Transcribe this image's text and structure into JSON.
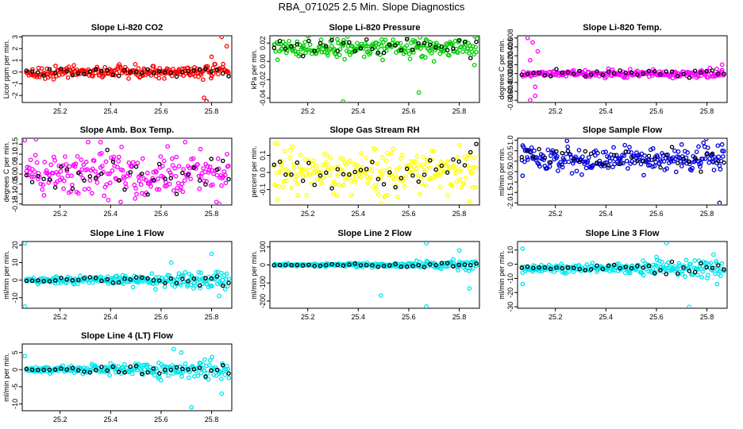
{
  "page": {
    "title": "RBA_071025  2.5 Min. Slope Diagnostics"
  },
  "chart_data": [
    {
      "type": "scatter",
      "title": "Slope Li-820 CO2",
      "ylabel": "Licor ppm per min.",
      "xlim": [
        25.05,
        25.88
      ],
      "ylim": [
        -2.6,
        3.1
      ],
      "xticks": [
        25.2,
        25.4,
        25.6,
        25.8
      ],
      "yticks": [
        -2,
        -1,
        0,
        1,
        2,
        3
      ],
      "ytick_labels": [
        "-2",
        "-1",
        "0",
        "1",
        "2",
        "3"
      ],
      "grid": false,
      "main_color": "#ff0000",
      "baseline": 0,
      "spread": 0.25,
      "outliers": [
        [
          25.84,
          3.0
        ],
        [
          25.77,
          -2.2
        ],
        [
          25.86,
          2.2
        ],
        [
          25.78,
          -2.5
        ],
        [
          25.8,
          1.3
        ]
      ],
      "series": [
        {
          "name": "",
          "color": "#ff0000"
        },
        {
          "name": "",
          "color": "#000000"
        }
      ]
    },
    {
      "type": "scatter",
      "title": "Slope Li-820 Pressure",
      "ylabel": "kPa per min.",
      "xlim": [
        25.05,
        25.88
      ],
      "ylim": [
        -0.045,
        0.028
      ],
      "xticks": [
        25.2,
        25.4,
        25.6,
        25.8
      ],
      "yticks": [
        -0.04,
        -0.02,
        0.0,
        0.02
      ],
      "ytick_labels": [
        "-0.04",
        "-0.02",
        "0.00",
        "0.02"
      ],
      "grid": false,
      "main_color": "#00cc00",
      "baseline": 0.015,
      "spread": 0.005,
      "outliers": [
        [
          25.34,
          -0.044
        ],
        [
          25.64,
          -0.034
        ],
        [
          25.87,
          0.025
        ],
        [
          25.86,
          -0.004
        ],
        [
          25.7,
          0.0
        ]
      ],
      "series": [
        {
          "name": "",
          "color": "#00cc00"
        },
        {
          "name": "",
          "color": "#000000"
        }
      ]
    },
    {
      "type": "scatter",
      "title": "Slope Li-820 Temp.",
      "ylabel": "degrees C per min.",
      "xlim": [
        25.05,
        25.88
      ],
      "ylim": [
        -0.0065,
        0.0085
      ],
      "xticks": [
        25.2,
        25.4,
        25.6,
        25.8
      ],
      "yticks": [
        -0.006,
        -0.004,
        -0.002,
        0.0,
        0.002,
        0.004,
        0.006,
        0.008
      ],
      "ytick_labels": [
        "-0.006",
        "-0.004",
        "-0.002",
        "0.000",
        "0.002",
        "0.004",
        "0.006",
        "0.008"
      ],
      "grid": false,
      "main_color": "#ff00ff",
      "baseline": 0.0,
      "spread": 0.0004,
      "outliers": [
        [
          25.09,
          0.008
        ],
        [
          25.1,
          -0.006
        ],
        [
          25.11,
          0.007
        ],
        [
          25.12,
          -0.005
        ],
        [
          25.13,
          0.005
        ],
        [
          25.1,
          0.003
        ],
        [
          25.12,
          -0.003
        ],
        [
          25.86,
          0.002
        ]
      ],
      "series": [
        {
          "name": "",
          "color": "#ff00ff"
        },
        {
          "name": "",
          "color": "#000000"
        }
      ]
    },
    {
      "type": "scatter",
      "title": "Slope Amb. Box Temp.",
      "ylabel": "degrees C per min.",
      "xlim": [
        25.05,
        25.88
      ],
      "ylim": [
        -0.155,
        0.18
      ],
      "xticks": [
        25.2,
        25.4,
        25.6,
        25.8
      ],
      "yticks": [
        -0.15,
        -0.1,
        -0.05,
        0.0,
        0.05,
        0.1,
        0.15
      ],
      "ytick_labels": [
        "-0.15",
        "-0.10",
        "-0.05",
        "0.00",
        "0.05",
        "0.10",
        "0.15"
      ],
      "grid": false,
      "main_color": "#ff00ff",
      "baseline": 0.0,
      "spread": 0.06,
      "outliers": [
        [
          25.36,
          0.16
        ],
        [
          25.44,
          -0.14
        ],
        [
          25.83,
          -0.15
        ],
        [
          25.06,
          0.17
        ]
      ],
      "series": [
        {
          "name": "",
          "color": "#ff00ff"
        },
        {
          "name": "",
          "color": "#000000"
        }
      ]
    },
    {
      "type": "scatter",
      "title": "Slope Gas Stream RH",
      "ylabel": "percent per min.",
      "xlim": [
        25.05,
        25.88
      ],
      "ylim": [
        -0.19,
        0.2
      ],
      "xticks": [
        25.2,
        25.4,
        25.6,
        25.8
      ],
      "yticks": [
        -0.1,
        0.0,
        0.1
      ],
      "ytick_labels": [
        "-0.1",
        "0.0",
        "0.1"
      ],
      "grid": false,
      "main_color": "#ffff00",
      "baseline": 0.0,
      "spread": 0.06,
      "outliers": [
        [
          25.07,
          0.17
        ],
        [
          25.08,
          -0.16
        ],
        [
          25.49,
          -0.18
        ],
        [
          25.84,
          -0.17
        ],
        [
          25.8,
          0.16
        ]
      ],
      "series": [
        {
          "name": "",
          "color": "#ffff00"
        },
        {
          "name": "",
          "color": "#000000"
        }
      ]
    },
    {
      "type": "scatter",
      "title": "Slope Sample Flow",
      "ylabel": "ml/min per min.",
      "xlim": [
        25.05,
        25.88
      ],
      "ylim": [
        -2.1,
        1.1
      ],
      "xticks": [
        25.2,
        25.4,
        25.6,
        25.8
      ],
      "yticks": [
        -2,
        -1.5,
        -1,
        -0.5,
        0,
        0.5,
        1
      ],
      "ytick_labels": [
        "-2.0",
        "-1.5",
        "-1.0",
        "-0.5",
        "0.0",
        "0.5",
        "1.0"
      ],
      "grid": false,
      "main_color": "#0000dd",
      "baseline": 0.1,
      "spread": 0.3,
      "outliers": [
        [
          25.85,
          -2.0
        ],
        [
          25.86,
          0.8
        ],
        [
          25.7,
          0.8
        ],
        [
          25.07,
          -0.7
        ]
      ],
      "series": [
        {
          "name": "",
          "color": "#0000dd"
        },
        {
          "name": "",
          "color": "#000000"
        }
      ]
    },
    {
      "type": "scatter",
      "title": "Slope Line 1 Flow",
      "ylabel": "ml/min per min.",
      "xlim": [
        25.05,
        25.88
      ],
      "ylim": [
        -16,
        22
      ],
      "xticks": [
        25.2,
        25.4,
        25.6,
        25.8
      ],
      "yticks": [
        -10,
        0,
        10,
        20
      ],
      "ytick_labels": [
        "-10",
        "0",
        "10",
        "20"
      ],
      "grid": false,
      "main_color": "#00e5ee",
      "baseline": 0,
      "spread": 1.5,
      "outliers": [
        [
          25.06,
          21
        ],
        [
          25.06,
          -15
        ],
        [
          25.8,
          15
        ],
        [
          25.83,
          -9
        ],
        [
          25.64,
          10
        ]
      ],
      "series": [
        {
          "name": "",
          "color": "#00e5ee"
        },
        {
          "name": "",
          "color": "#000000"
        }
      ]
    },
    {
      "type": "scatter",
      "title": "Slope Line 2 Flow",
      "ylabel": "ml/min per min.",
      "xlim": [
        25.05,
        25.88
      ],
      "ylim": [
        -240,
        130
      ],
      "xticks": [
        25.2,
        25.4,
        25.6,
        25.8
      ],
      "yticks": [
        -200,
        -100,
        0,
        100
      ],
      "ytick_labels": [
        "-200",
        "-100",
        "0",
        "100"
      ],
      "grid": false,
      "main_color": "#00e5ee",
      "baseline": 0,
      "spread": 6,
      "outliers": [
        [
          25.67,
          120
        ],
        [
          25.67,
          -230
        ],
        [
          25.49,
          -170
        ],
        [
          25.8,
          80
        ],
        [
          25.84,
          -130
        ]
      ],
      "series": [
        {
          "name": "",
          "color": "#00e5ee"
        },
        {
          "name": "",
          "color": "#000000"
        }
      ]
    },
    {
      "type": "scatter",
      "title": "Slope Line 3 Flow",
      "ylabel": "ml/min per min.",
      "xlim": [
        25.05,
        25.88
      ],
      "ylim": [
        -31,
        16
      ],
      "xticks": [
        25.2,
        25.4,
        25.6,
        25.8
      ],
      "yticks": [
        -30,
        -20,
        -10,
        0,
        10
      ],
      "ytick_labels": [
        "-30",
        "-20",
        "-10",
        "0",
        "10"
      ],
      "grid": false,
      "main_color": "#00e5ee",
      "baseline": -3,
      "spread": 2,
      "outliers": [
        [
          25.64,
          15
        ],
        [
          25.73,
          -30
        ],
        [
          25.07,
          11
        ],
        [
          25.07,
          -14
        ],
        [
          25.84,
          -14
        ],
        [
          25.6,
          5
        ]
      ],
      "series": [
        {
          "name": "",
          "color": "#00e5ee"
        },
        {
          "name": "",
          "color": "#000000"
        }
      ]
    },
    {
      "type": "scatter",
      "title": "Slope Line 4 (LT) Flow",
      "ylabel": "ml/min per min.",
      "xlim": [
        25.05,
        25.88
      ],
      "ylim": [
        -12,
        7.5
      ],
      "xticks": [
        25.2,
        25.4,
        25.6,
        25.8
      ],
      "yticks": [
        -10,
        -5,
        0,
        5
      ],
      "ytick_labels": [
        "-10",
        "-5",
        "0",
        "5"
      ],
      "grid": false,
      "main_color": "#00e5ee",
      "baseline": 0,
      "spread": 0.8,
      "outliers": [
        [
          25.72,
          -11
        ],
        [
          25.65,
          6
        ],
        [
          25.84,
          -7
        ],
        [
          25.68,
          5
        ],
        [
          25.06,
          4
        ]
      ],
      "series": [
        {
          "name": "",
          "color": "#00e5ee"
        },
        {
          "name": "",
          "color": "#000000"
        }
      ]
    }
  ]
}
